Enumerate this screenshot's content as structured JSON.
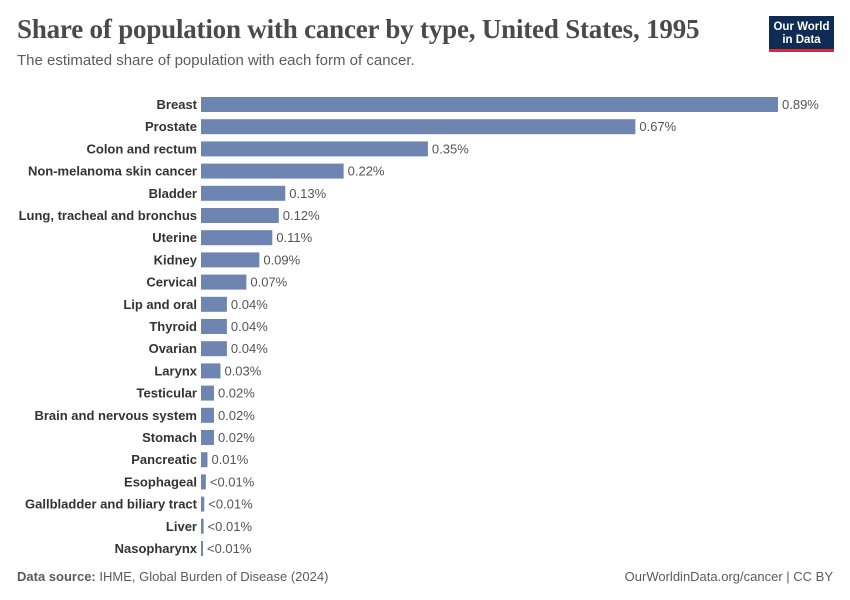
{
  "header": {
    "title": "Share of population with cancer by type, United States, 1995",
    "subtitle": "The estimated share of population with each form of cancer."
  },
  "logo": {
    "line1": "Our World",
    "line2": "in Data"
  },
  "footer": {
    "source_label": "Data source:",
    "source_text": "IHME, Global Burden of Disease (2024)",
    "url_text": "OurWorldinData.org/cancer | CC BY"
  },
  "colors": {
    "bar": "#6e85b2",
    "label": "#333333",
    "value": "#555555"
  },
  "chart_data": {
    "type": "bar",
    "orientation": "horizontal",
    "title": "Share of population with cancer by type, United States, 1995",
    "xlabel": "",
    "ylabel": "",
    "categories": [
      "Breast",
      "Prostate",
      "Colon and rectum",
      "Non-melanoma skin cancer",
      "Bladder",
      "Lung, tracheal and bronchus",
      "Uterine",
      "Kidney",
      "Cervical",
      "Lip and oral",
      "Thyroid",
      "Ovarian",
      "Larynx",
      "Testicular",
      "Brain and nervous system",
      "Stomach",
      "Pancreatic",
      "Esophageal",
      "Gallbladder and biliary tract",
      "Liver",
      "Nasopharynx"
    ],
    "values": [
      0.89,
      0.67,
      0.35,
      0.22,
      0.13,
      0.12,
      0.11,
      0.09,
      0.07,
      0.04,
      0.04,
      0.04,
      0.03,
      0.02,
      0.02,
      0.02,
      0.01,
      0.0075,
      0.005,
      0.004,
      0.003
    ],
    "value_labels": [
      "0.89%",
      "0.67%",
      "0.35%",
      "0.22%",
      "0.13%",
      "0.12%",
      "0.11%",
      "0.09%",
      "0.07%",
      "0.04%",
      "0.04%",
      "0.04%",
      "0.03%",
      "0.02%",
      "0.02%",
      "0.02%",
      "0.01%",
      "<0.01%",
      "<0.01%",
      "<0.01%",
      "<0.01%"
    ],
    "xlim": [
      0,
      0.89
    ],
    "unit": "%"
  }
}
